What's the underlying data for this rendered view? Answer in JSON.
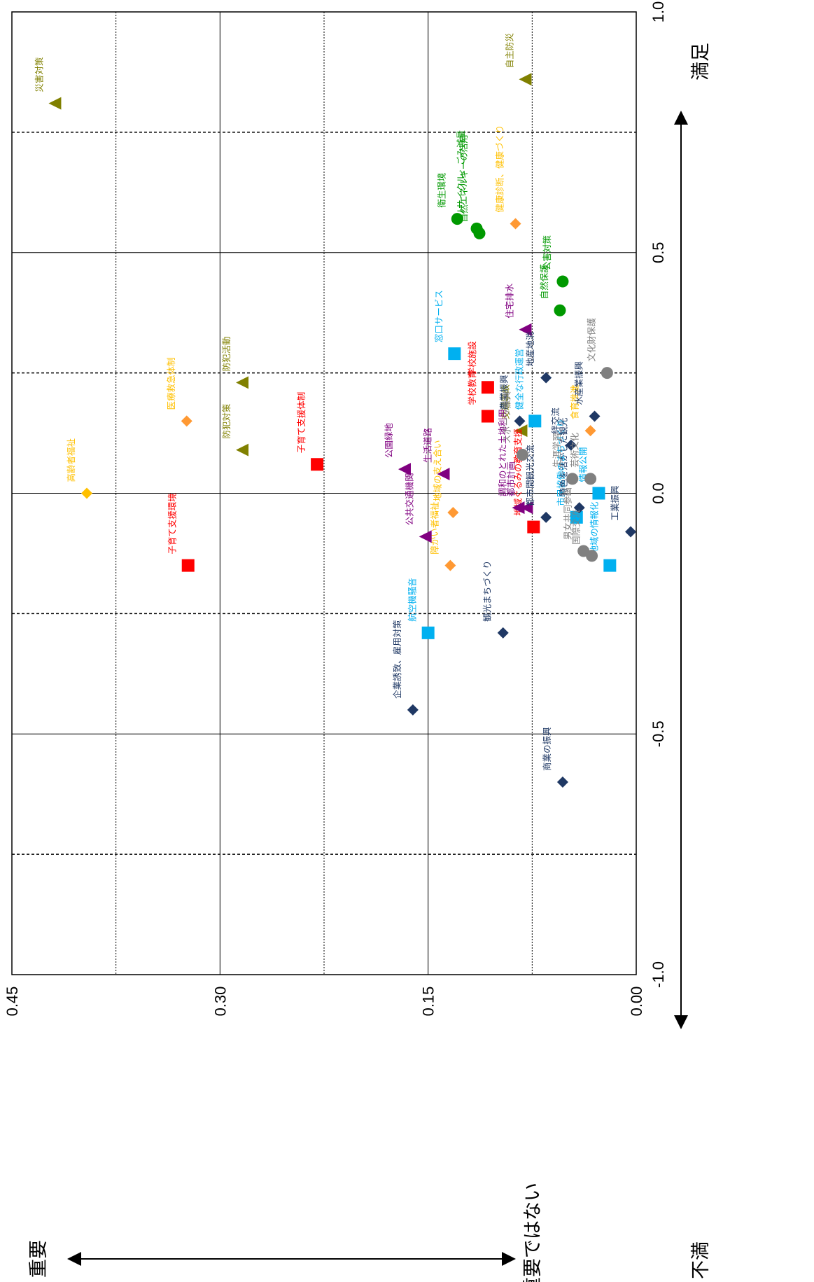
{
  "chart_data": {
    "type": "scatter",
    "orientation": "rotated-90-clockwise",
    "x_axis": {
      "meaning": "満足度",
      "range": [
        -1.0,
        1.0
      ],
      "ticks": [
        "-1.0",
        "-0.5",
        "0.0",
        "0.5",
        "1.0"
      ],
      "low_label": "不満",
      "high_label": "満足",
      "reference_lines": [
        -0.75,
        -0.25,
        0.25,
        0.75
      ]
    },
    "y_axis": {
      "meaning": "重要度",
      "range": [
        0.0,
        0.45
      ],
      "ticks": [
        "0.00",
        "0.15",
        "0.30",
        "0.45"
      ],
      "low_label": "重要ではない",
      "high_label": "重要",
      "reference_lines": [
        0.075,
        0.225,
        0.375
      ]
    },
    "grid": true,
    "colors": {
      "olive": "#808000",
      "red": "#ff0000",
      "orange": "#ff9933",
      "gold": "#ffc000",
      "purple": "#800080",
      "green": "#009900",
      "sky": "#00b0f0",
      "navy": "#1f3864",
      "gray": "#808080"
    },
    "points": [
      {
        "label": "災害対策",
        "x": 0.81,
        "y": 0.419,
        "shape": "triangle",
        "color": "olive",
        "text_color": "olive"
      },
      {
        "label": "自主防災",
        "x": 0.86,
        "y": 0.08,
        "shape": "triangle",
        "color": "olive",
        "text_color": "olive"
      },
      {
        "label": "防犯活動",
        "x": 0.23,
        "y": 0.284,
        "shape": "triangle",
        "color": "olive",
        "text_color": "olive"
      },
      {
        "label": "防犯対策",
        "x": 0.09,
        "y": 0.284,
        "shape": "triangle",
        "color": "olive",
        "text_color": "olive"
      },
      {
        "label": "交通事故",
        "x": 0.13,
        "y": 0.083,
        "shape": "triangle",
        "color": "olive",
        "text_color": "olive"
      },
      {
        "label": "医療救急体制",
        "x": 0.15,
        "y": 0.324,
        "shape": "diamond",
        "color": "orange",
        "text_color": "gold"
      },
      {
        "label": "高齢者福祉",
        "x": 0.0,
        "y": 0.396,
        "shape": "diamond",
        "color": "gold",
        "text_color": "gold"
      },
      {
        "label": "健康診断、健康づくり",
        "x": 0.56,
        "y": 0.087,
        "shape": "diamond",
        "color": "orange",
        "text_color": "gold"
      },
      {
        "label": "地域の支え合い",
        "x": -0.04,
        "y": 0.132,
        "shape": "diamond",
        "color": "orange",
        "text_color": "gold"
      },
      {
        "label": "障がい者福祉",
        "x": -0.15,
        "y": 0.134,
        "shape": "diamond",
        "color": "orange",
        "text_color": "gold"
      },
      {
        "label": "食育推進",
        "x": 0.13,
        "y": 0.033,
        "shape": "diamond",
        "color": "orange",
        "text_color": "gold"
      },
      {
        "label": "子育て支援体制",
        "x": 0.06,
        "y": 0.23,
        "shape": "square",
        "color": "red",
        "text_color": "red"
      },
      {
        "label": "子育て支援環境",
        "x": -0.15,
        "y": 0.323,
        "shape": "square",
        "color": "red",
        "text_color": "red"
      },
      {
        "label": "学校施設",
        "x": 0.22,
        "y": 0.107,
        "shape": "square",
        "color": "red",
        "text_color": "red"
      },
      {
        "label": "学校教育",
        "x": 0.16,
        "y": 0.107,
        "shape": "square",
        "color": "red",
        "text_color": "red"
      },
      {
        "label": "地域ぐるみの教育支援",
        "x": -0.07,
        "y": 0.074,
        "shape": "square",
        "color": "red",
        "text_color": "red"
      },
      {
        "label": "公園緑地",
        "x": 0.05,
        "y": 0.167,
        "shape": "triangle",
        "color": "purple",
        "text_color": "purple"
      },
      {
        "label": "生活道路",
        "x": 0.04,
        "y": 0.139,
        "shape": "triangle",
        "color": "purple",
        "text_color": "purple"
      },
      {
        "label": "住宅排水",
        "x": 0.34,
        "y": 0.08,
        "shape": "triangle",
        "color": "purple",
        "text_color": "purple"
      },
      {
        "label": "公共交通機関",
        "x": -0.09,
        "y": 0.152,
        "shape": "triangle",
        "color": "purple",
        "text_color": "purple"
      },
      {
        "label": "調和のとれた土地利用",
        "x": -0.03,
        "y": 0.085,
        "shape": "triangle",
        "color": "purple",
        "text_color": "purple"
      },
      {
        "label": "都市計画",
        "x": -0.03,
        "y": 0.079,
        "shape": "triangle",
        "color": "purple",
        "text_color": "purple"
      },
      {
        "label": "衛生環境",
        "x": 0.57,
        "y": 0.129,
        "shape": "circle",
        "color": "green",
        "text_color": "green"
      },
      {
        "label": "リサイクル、ごみ減量",
        "x": 0.55,
        "y": 0.115,
        "shape": "circle",
        "color": "green",
        "text_color": "green"
      },
      {
        "label": "自然エネルギーの活用",
        "x": 0.54,
        "y": 0.113,
        "shape": "circle",
        "color": "green",
        "text_color": "green"
      },
      {
        "label": "公害対策",
        "x": 0.44,
        "y": 0.053,
        "shape": "circle",
        "color": "green",
        "text_color": "green"
      },
      {
        "label": "自然保護",
        "x": 0.38,
        "y": 0.055,
        "shape": "circle",
        "color": "green",
        "text_color": "green"
      },
      {
        "label": "窓口サービス",
        "x": 0.29,
        "y": 0.131,
        "shape": "square",
        "color": "sky",
        "text_color": "sky"
      },
      {
        "label": "健全な行政運営",
        "x": 0.15,
        "y": 0.073,
        "shape": "square",
        "color": "sky",
        "text_color": "sky"
      },
      {
        "label": "情報公開",
        "x": 0.0,
        "y": 0.027,
        "shape": "square",
        "color": "sky",
        "text_color": "sky"
      },
      {
        "label": "市民協働のまちづくり",
        "x": -0.05,
        "y": 0.043,
        "shape": "square",
        "color": "sky",
        "text_color": "sky"
      },
      {
        "label": "航空機騒音",
        "x": -0.29,
        "y": 0.15,
        "shape": "square",
        "color": "sky",
        "text_color": "sky"
      },
      {
        "label": "地域の情報化",
        "x": -0.15,
        "y": 0.019,
        "shape": "square",
        "color": "sky",
        "text_color": "sky"
      },
      {
        "label": "地産地消",
        "x": 0.24,
        "y": 0.065,
        "shape": "diamond",
        "color": "navy",
        "text_color": "navy"
      },
      {
        "label": "水産業振興",
        "x": 0.16,
        "y": 0.03,
        "shape": "diamond",
        "color": "navy",
        "text_color": "navy"
      },
      {
        "label": "農業振興",
        "x": 0.15,
        "y": 0.084,
        "shape": "diamond",
        "color": "navy",
        "text_color": "navy"
      },
      {
        "label": "絆交流",
        "x": 0.1,
        "y": 0.047,
        "shape": "diamond",
        "color": "navy",
        "text_color": "navy"
      },
      {
        "label": "特色を活かした観光",
        "x": -0.03,
        "y": 0.041,
        "shape": "diamond",
        "color": "navy",
        "text_color": "navy"
      },
      {
        "label": "都市間観光交流",
        "x": -0.05,
        "y": 0.065,
        "shape": "diamond",
        "color": "navy",
        "text_color": "navy"
      },
      {
        "label": "工業振興",
        "x": -0.08,
        "y": 0.004,
        "shape": "diamond",
        "color": "navy",
        "text_color": "navy"
      },
      {
        "label": "観光まちづくり",
        "x": -0.29,
        "y": 0.096,
        "shape": "diamond",
        "color": "navy",
        "text_color": "navy"
      },
      {
        "label": "企業誘致、雇用対策",
        "x": -0.45,
        "y": 0.161,
        "shape": "diamond",
        "color": "navy",
        "text_color": "navy"
      },
      {
        "label": "商業の振興",
        "x": -0.6,
        "y": 0.053,
        "shape": "diamond",
        "color": "navy",
        "text_color": "navy"
      },
      {
        "label": "文化財保護",
        "x": 0.25,
        "y": 0.021,
        "shape": "circle",
        "color": "gray",
        "text_color": "gray"
      },
      {
        "label": "スポーツ振興",
        "x": 0.08,
        "y": 0.082,
        "shape": "circle",
        "color": "gray",
        "text_color": "gray"
      },
      {
        "label": "芸術文化",
        "x": 0.03,
        "y": 0.033,
        "shape": "circle",
        "color": "gray",
        "text_color": "gray"
      },
      {
        "label": "生涯学習",
        "x": 0.03,
        "y": 0.046,
        "shape": "circle",
        "color": "gray",
        "text_color": "gray"
      },
      {
        "label": "男女共同参画",
        "x": -0.12,
        "y": 0.038,
        "shape": "circle",
        "color": "gray",
        "text_color": "gray"
      },
      {
        "label": "国際交流",
        "x": -0.13,
        "y": 0.032,
        "shape": "circle",
        "color": "gray",
        "text_color": "gray"
      }
    ]
  }
}
